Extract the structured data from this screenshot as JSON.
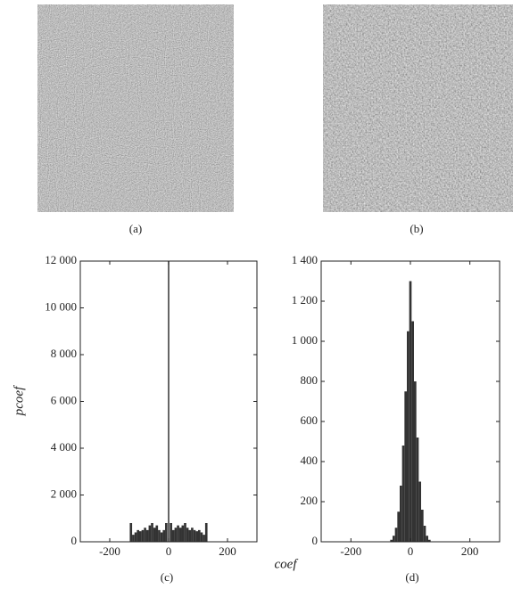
{
  "figure": {
    "captions": [
      "(a)",
      "(b)"
    ]
  },
  "chart_data": [
    {
      "type": "bar",
      "caption": "(c)",
      "ylabel": "pcoef",
      "xlabel": "coef",
      "color": "#333333",
      "x": [
        -128,
        -120,
        -112,
        -104,
        -96,
        -88,
        -80,
        -72,
        -64,
        -56,
        -48,
        -40,
        -32,
        -24,
        -16,
        -8,
        0,
        8,
        16,
        24,
        32,
        40,
        48,
        56,
        64,
        72,
        80,
        88,
        96,
        104,
        112,
        120,
        128
      ],
      "values": [
        800,
        300,
        400,
        500,
        450,
        500,
        600,
        500,
        700,
        800,
        600,
        700,
        500,
        400,
        500,
        800,
        12000,
        800,
        500,
        600,
        700,
        600,
        700,
        800,
        600,
        500,
        600,
        500,
        450,
        500,
        400,
        300,
        800
      ],
      "xlim": [
        -300,
        300
      ],
      "xticks": [
        -200,
        0,
        200
      ],
      "ylim": [
        0,
        12000
      ],
      "yticks": [
        0,
        {
          "value": 2000,
          "label": "2 000"
        },
        {
          "value": 4000,
          "label": "4 000"
        },
        {
          "value": 6000,
          "label": "6 000"
        },
        {
          "value": 8000,
          "label": "8 000"
        },
        {
          "value": 10000,
          "label": "10 000"
        },
        {
          "value": 12000,
          "label": "12 000"
        }
      ]
    },
    {
      "type": "bar",
      "caption": "(d)",
      "color": "#333333",
      "x": [
        -64,
        -56,
        -48,
        -40,
        -32,
        -24,
        -16,
        -8,
        0,
        8,
        16,
        24,
        32,
        40,
        48,
        56,
        64
      ],
      "values": [
        10,
        30,
        70,
        150,
        280,
        480,
        750,
        1050,
        1300,
        1100,
        800,
        520,
        300,
        160,
        80,
        30,
        10
      ],
      "xlim": [
        -300,
        300
      ],
      "xticks": [
        -200,
        0,
        200
      ],
      "ylim": [
        0,
        1400
      ],
      "yticks": [
        0,
        200,
        400,
        600,
        800,
        {
          "value": 1000,
          "label": "1 000"
        },
        {
          "value": 1200,
          "label": "1 200"
        },
        {
          "value": 1400,
          "label": "1 400"
        }
      ]
    }
  ]
}
